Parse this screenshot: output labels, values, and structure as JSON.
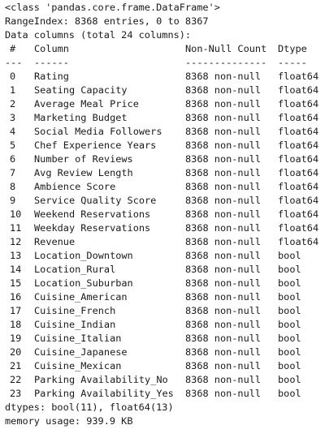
{
  "info": {
    "class_line": "<class 'pandas.core.frame.DataFrame'>",
    "range_index": "RangeIndex: 8368 entries, 0 to 8367",
    "data_columns": "Data columns (total 24 columns):",
    "headers": {
      "num": "#",
      "column": "Column",
      "nonnull": "Non-Null Count",
      "dtype": "Dtype"
    },
    "underlines": {
      "num": "---",
      "column": "------",
      "nonnull": "--------------",
      "dtype": "-----"
    },
    "rows": [
      {
        "num": "0",
        "column": "Rating",
        "nonnull": "8368 non-null",
        "dtype": "float64"
      },
      {
        "num": "1",
        "column": "Seating Capacity",
        "nonnull": "8368 non-null",
        "dtype": "float64"
      },
      {
        "num": "2",
        "column": "Average Meal Price",
        "nonnull": "8368 non-null",
        "dtype": "float64"
      },
      {
        "num": "3",
        "column": "Marketing Budget",
        "nonnull": "8368 non-null",
        "dtype": "float64"
      },
      {
        "num": "4",
        "column": "Social Media Followers",
        "nonnull": "8368 non-null",
        "dtype": "float64"
      },
      {
        "num": "5",
        "column": "Chef Experience Years",
        "nonnull": "8368 non-null",
        "dtype": "float64"
      },
      {
        "num": "6",
        "column": "Number of Reviews",
        "nonnull": "8368 non-null",
        "dtype": "float64"
      },
      {
        "num": "7",
        "column": "Avg Review Length",
        "nonnull": "8368 non-null",
        "dtype": "float64"
      },
      {
        "num": "8",
        "column": "Ambience Score",
        "nonnull": "8368 non-null",
        "dtype": "float64"
      },
      {
        "num": "9",
        "column": "Service Quality Score",
        "nonnull": "8368 non-null",
        "dtype": "float64"
      },
      {
        "num": "10",
        "column": "Weekend Reservations",
        "nonnull": "8368 non-null",
        "dtype": "float64"
      },
      {
        "num": "11",
        "column": "Weekday Reservations",
        "nonnull": "8368 non-null",
        "dtype": "float64"
      },
      {
        "num": "12",
        "column": "Revenue",
        "nonnull": "8368 non-null",
        "dtype": "float64"
      },
      {
        "num": "13",
        "column": "Location_Downtown",
        "nonnull": "8368 non-null",
        "dtype": "bool"
      },
      {
        "num": "14",
        "column": "Location_Rural",
        "nonnull": "8368 non-null",
        "dtype": "bool"
      },
      {
        "num": "15",
        "column": "Location_Suburban",
        "nonnull": "8368 non-null",
        "dtype": "bool"
      },
      {
        "num": "16",
        "column": "Cuisine_American",
        "nonnull": "8368 non-null",
        "dtype": "bool"
      },
      {
        "num": "17",
        "column": "Cuisine_French",
        "nonnull": "8368 non-null",
        "dtype": "bool"
      },
      {
        "num": "18",
        "column": "Cuisine_Indian",
        "nonnull": "8368 non-null",
        "dtype": "bool"
      },
      {
        "num": "19",
        "column": "Cuisine_Italian",
        "nonnull": "8368 non-null",
        "dtype": "bool"
      },
      {
        "num": "20",
        "column": "Cuisine_Japanese",
        "nonnull": "8368 non-null",
        "dtype": "bool"
      },
      {
        "num": "21",
        "column": "Cuisine_Mexican",
        "nonnull": "8368 non-null",
        "dtype": "bool"
      },
      {
        "num": "22",
        "column": "Parking Availability_No",
        "nonnull": "8368 non-null",
        "dtype": "bool"
      },
      {
        "num": "23",
        "column": "Parking Availability_Yes",
        "nonnull": "8368 non-null",
        "dtype": "bool"
      }
    ],
    "dtypes_line": "dtypes: bool(11), float64(13)",
    "memory_line": "memory usage: 939.9 KB"
  }
}
